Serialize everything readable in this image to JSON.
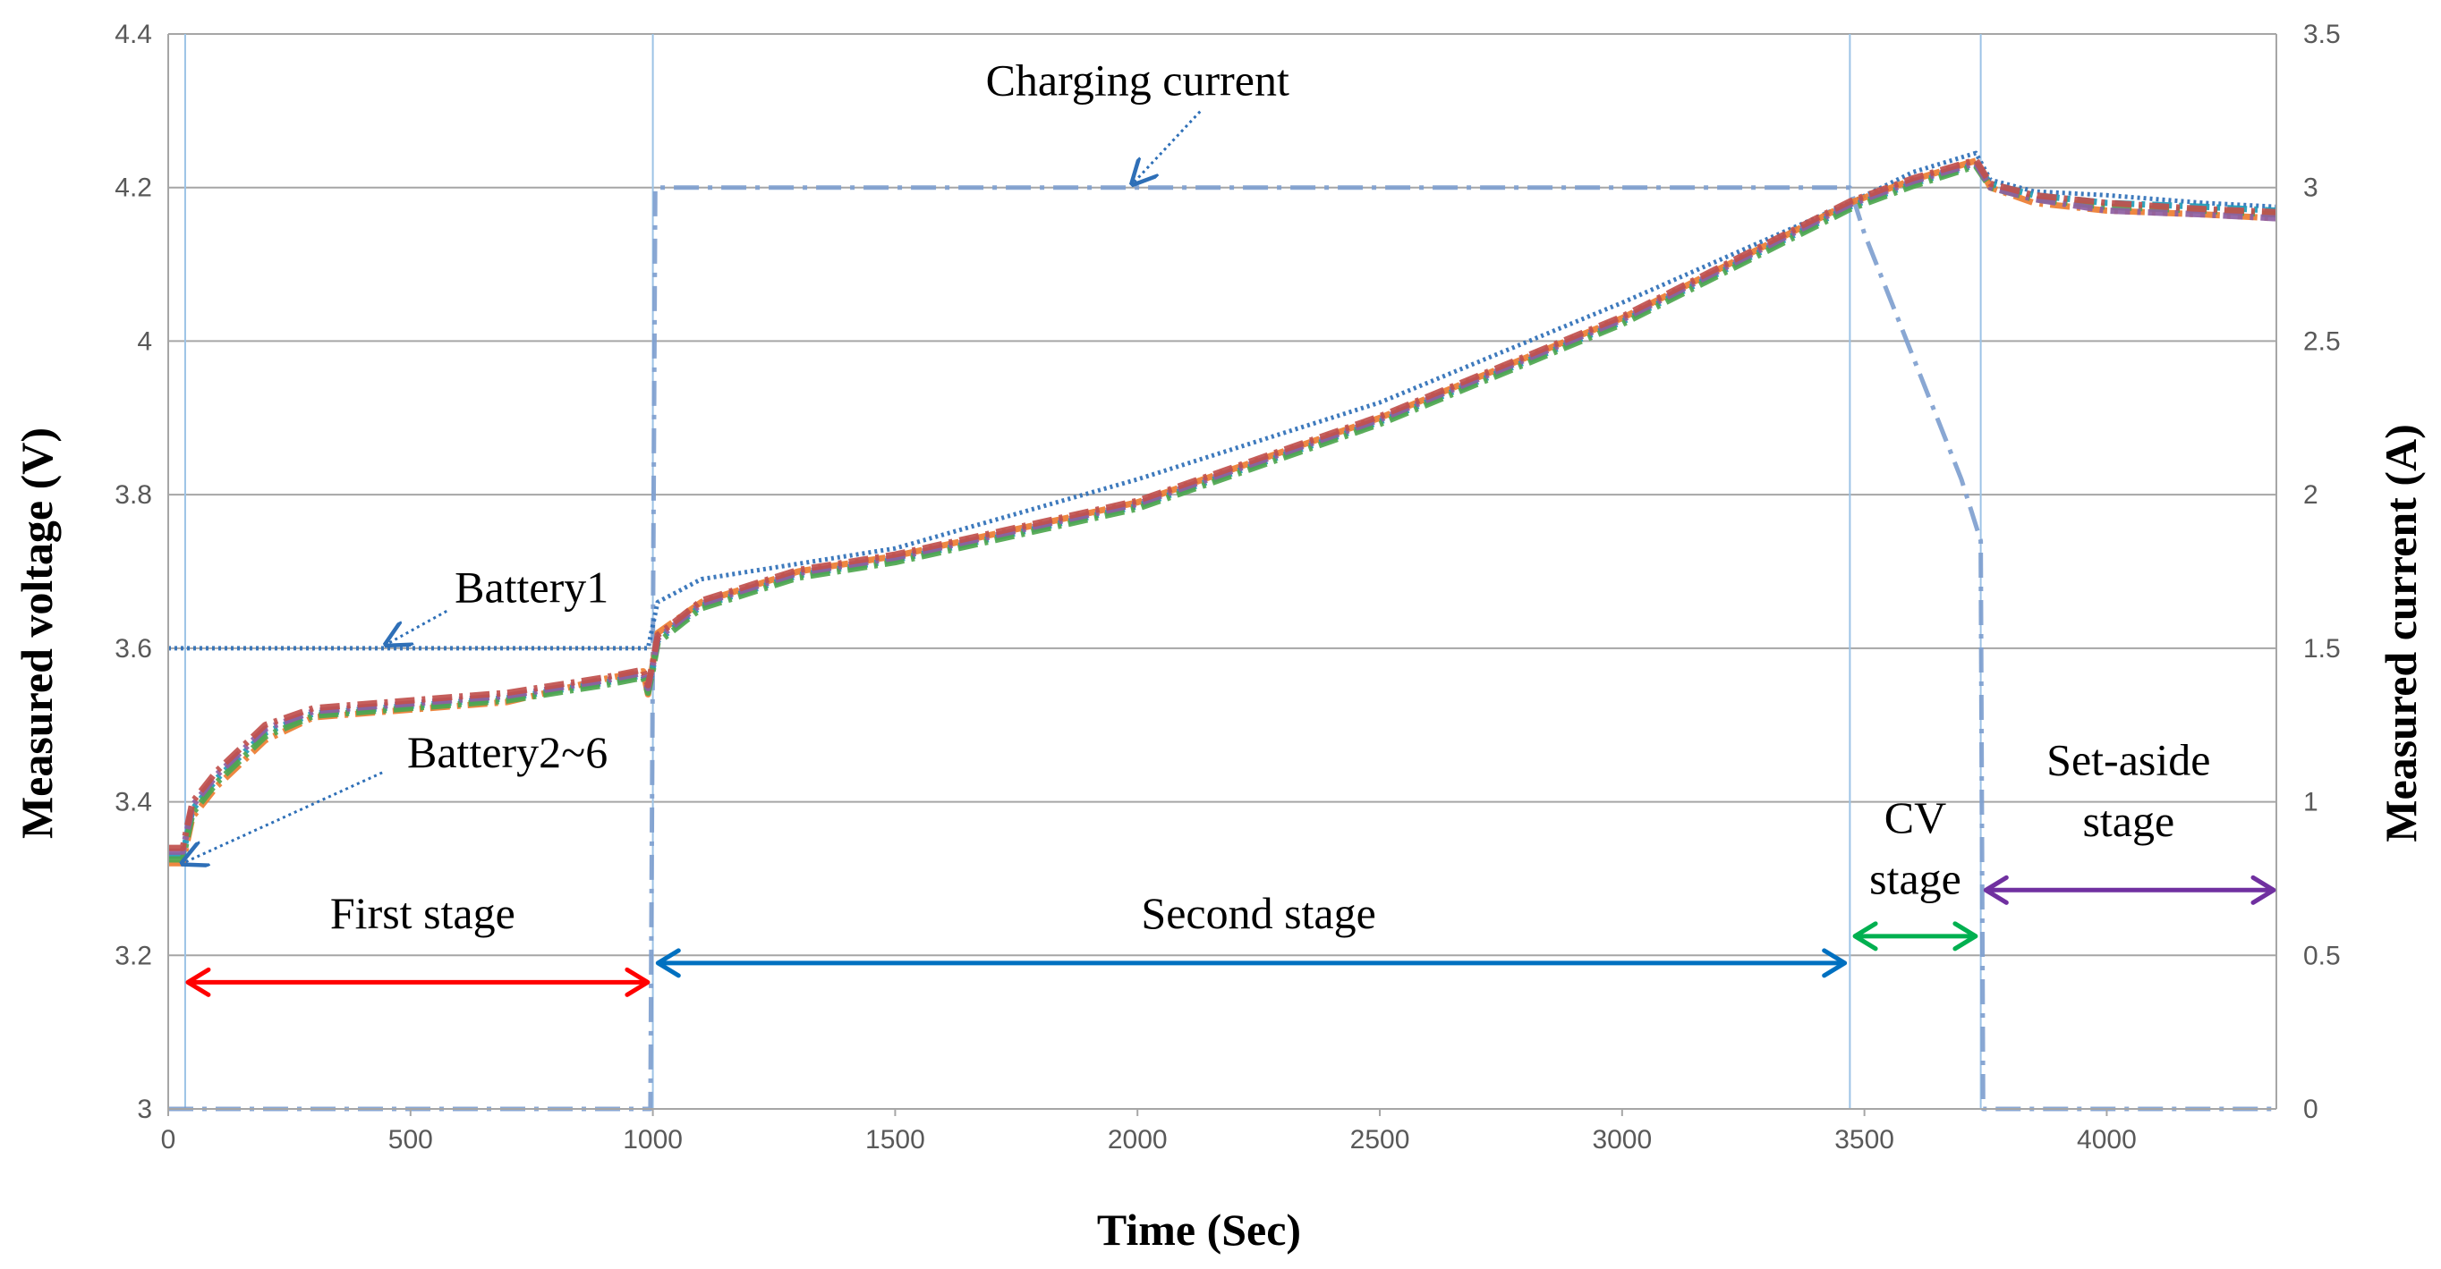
{
  "chart_data": {
    "type": "line",
    "title": "",
    "xlabel": "Time (Sec)",
    "ylabel": "Measured voltage (V)",
    "y2label": "Measured current (A)",
    "xlim": [
      0,
      4350
    ],
    "ylim": [
      3.0,
      4.4
    ],
    "y2lim": [
      0,
      3.5
    ],
    "x_ticks": [
      0,
      500,
      1000,
      1500,
      2000,
      2500,
      3000,
      3500,
      4000
    ],
    "y_ticks": [
      3.0,
      3.2,
      3.4,
      3.6,
      3.8,
      4.0,
      4.2,
      4.4
    ],
    "y2_ticks": [
      0,
      0.5,
      1,
      1.5,
      2,
      2.5,
      3,
      3.5
    ],
    "x_tick_labels": [
      "0",
      "500",
      "1000",
      "1500",
      "2000",
      "2500",
      "3000",
      "3500",
      "4000"
    ],
    "y_tick_labels": [
      "3",
      "3.2",
      "3.4",
      "3.6",
      "3.8",
      "4",
      "4.2",
      "4.4"
    ],
    "y2_tick_labels": [
      "0",
      "0.5",
      "1",
      "1.5",
      "2",
      "2.5",
      "3",
      "3.5"
    ],
    "grid": true,
    "stage_boundaries": [
      35,
      1000,
      3470,
      3740
    ],
    "series": [
      {
        "name": "Charging current",
        "axis": "right",
        "color": "#7f9fcf",
        "style": "dash-dot",
        "x": [
          0,
          995,
          1000,
          1005,
          2000,
          3470,
          3500,
          3550,
          3600,
          3650,
          3700,
          3730,
          3740,
          3745,
          3800,
          4350
        ],
        "y": [
          0,
          0,
          1.5,
          3.0,
          3.0,
          3.0,
          2.85,
          2.65,
          2.45,
          2.25,
          2.05,
          1.9,
          1.85,
          0,
          0,
          0
        ]
      },
      {
        "name": "Battery1",
        "axis": "left",
        "color": "#2e6fb7",
        "style": "dotted",
        "x": [
          0,
          50,
          500,
          990,
          1000,
          1010,
          1100,
          1500,
          2000,
          2500,
          3000,
          3470,
          3600,
          3730,
          3760,
          3850,
          4000,
          4200,
          4350
        ],
        "y": [
          3.6,
          3.6,
          3.6,
          3.6,
          3.63,
          3.66,
          3.69,
          3.73,
          3.82,
          3.92,
          4.05,
          4.18,
          4.22,
          4.245,
          4.21,
          4.195,
          4.19,
          4.18,
          4.175
        ]
      },
      {
        "name": "Battery2",
        "axis": "left",
        "color": "#ed7d31",
        "style": "dash-dot",
        "x": [
          0,
          30,
          50,
          100,
          200,
          300,
          500,
          700,
          900,
          980,
          990,
          1000,
          1010,
          1100,
          1300,
          1500,
          2000,
          2500,
          3000,
          3470,
          3600,
          3730,
          3760,
          3850,
          4000,
          4200,
          4350
        ],
        "y": [
          3.32,
          3.32,
          3.38,
          3.42,
          3.48,
          3.51,
          3.52,
          3.53,
          3.56,
          3.57,
          3.54,
          3.58,
          3.62,
          3.66,
          3.7,
          3.72,
          3.79,
          3.9,
          4.03,
          4.18,
          4.21,
          4.235,
          4.2,
          4.18,
          4.17,
          4.165,
          4.16
        ]
      },
      {
        "name": "Battery3",
        "axis": "left",
        "color": "#1f9bb8",
        "style": "dash-dot",
        "x": [
          0,
          30,
          50,
          100,
          200,
          300,
          500,
          700,
          900,
          980,
          990,
          1000,
          1010,
          1100,
          1300,
          1500,
          2000,
          2500,
          3000,
          3470,
          3600,
          3730,
          3760,
          3850,
          4000,
          4200,
          4350
        ],
        "y": [
          3.33,
          3.33,
          3.39,
          3.43,
          3.49,
          3.515,
          3.525,
          3.535,
          3.555,
          3.565,
          3.545,
          3.575,
          3.61,
          3.655,
          3.695,
          3.715,
          3.785,
          3.895,
          4.025,
          4.175,
          4.205,
          4.23,
          4.205,
          4.19,
          4.18,
          4.175,
          4.17
        ]
      },
      {
        "name": "Battery4",
        "axis": "left",
        "color": "#4ea64e",
        "style": "dash-dot",
        "x": [
          0,
          30,
          50,
          100,
          200,
          300,
          500,
          700,
          900,
          980,
          990,
          1000,
          1010,
          1100,
          1300,
          1500,
          2000,
          2500,
          3000,
          3470,
          3600,
          3730,
          3760,
          3850,
          4000,
          4200,
          4350
        ],
        "y": [
          3.325,
          3.325,
          3.385,
          3.425,
          3.485,
          3.512,
          3.522,
          3.532,
          3.552,
          3.562,
          3.542,
          3.572,
          3.607,
          3.652,
          3.692,
          3.712,
          3.782,
          3.892,
          4.022,
          4.172,
          4.202,
          4.228,
          4.2,
          4.185,
          4.175,
          4.17,
          4.165
        ]
      },
      {
        "name": "Battery5",
        "axis": "left",
        "color": "#8e5ea2",
        "style": "dash-dot",
        "x": [
          0,
          30,
          50,
          100,
          200,
          300,
          500,
          700,
          900,
          980,
          990,
          1000,
          1010,
          1100,
          1300,
          1500,
          2000,
          2500,
          3000,
          3470,
          3600,
          3730,
          3760,
          3850,
          4000,
          4200,
          4350
        ],
        "y": [
          3.335,
          3.335,
          3.395,
          3.435,
          3.495,
          3.518,
          3.528,
          3.538,
          3.558,
          3.568,
          3.548,
          3.578,
          3.613,
          3.658,
          3.698,
          3.718,
          3.788,
          3.898,
          4.028,
          4.178,
          4.208,
          4.232,
          4.2,
          4.185,
          4.17,
          4.165,
          4.16
        ]
      },
      {
        "name": "Battery6",
        "axis": "left",
        "color": "#c0504d",
        "style": "dash-dot",
        "x": [
          0,
          30,
          50,
          100,
          200,
          300,
          500,
          700,
          900,
          980,
          990,
          1000,
          1010,
          1100,
          1300,
          1500,
          2000,
          2500,
          3000,
          3470,
          3600,
          3730,
          3760,
          3850,
          4000,
          4200,
          4350
        ],
        "y": [
          3.34,
          3.34,
          3.4,
          3.44,
          3.5,
          3.522,
          3.532,
          3.542,
          3.562,
          3.572,
          3.552,
          3.582,
          3.617,
          3.662,
          3.702,
          3.722,
          3.792,
          3.902,
          4.032,
          4.182,
          4.212,
          4.236,
          4.205,
          4.19,
          4.18,
          4.172,
          4.168
        ]
      }
    ],
    "annotations": [
      {
        "name": "charging-current",
        "text": "Charging current",
        "x": 2000,
        "y": 4.32,
        "arrow_to": [
          1990,
          4.205
        ],
        "color": "#2e6fb7"
      },
      {
        "name": "battery1",
        "text": "Battery1",
        "x": 750,
        "y": 3.66,
        "arrow_to": [
          450,
          3.605
        ],
        "color": "#2e6fb7"
      },
      {
        "name": "battery2-6",
        "text": "Battery2~6",
        "x": 700,
        "y": 3.445,
        "arrow_to": [
          30,
          3.32
        ],
        "color": "#2e6fb7"
      }
    ],
    "stages": [
      {
        "name": "first-stage",
        "lines": [
          "First stage"
        ],
        "label_x": 525,
        "label_y": [
          3.235
        ],
        "from": 35,
        "to": 995,
        "arrow_y": 3.165,
        "color": "#ff0000"
      },
      {
        "name": "second-stage",
        "lines": [
          "Second stage"
        ],
        "label_x": 2250,
        "label_y": [
          3.235
        ],
        "from": 1005,
        "to": 3465,
        "arrow_y": 3.19,
        "color": "#0070c0"
      },
      {
        "name": "cv-stage",
        "lines": [
          "CV",
          "stage"
        ],
        "label_x": 3605,
        "label_y": [
          3.36,
          3.28
        ],
        "from": 3475,
        "to": 3735,
        "arrow_y": 3.225,
        "color": "#00b050"
      },
      {
        "name": "set-aside-stage",
        "lines": [
          "Set-aside",
          "stage"
        ],
        "label_x": 4045,
        "label_y": [
          3.435,
          3.355
        ],
        "from": 3745,
        "to": 4350,
        "arrow_y": 3.285,
        "color": "#7030a0"
      }
    ]
  }
}
